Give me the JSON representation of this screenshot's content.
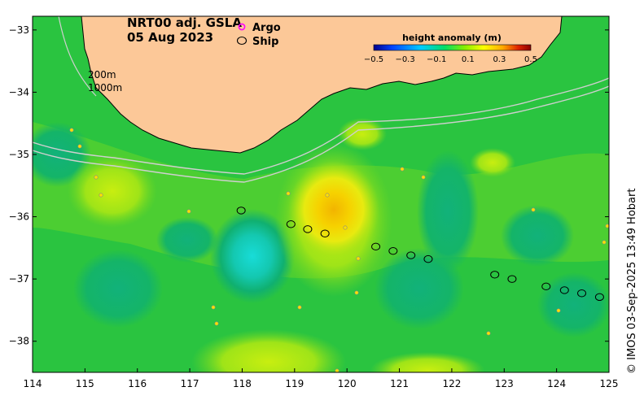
{
  "title": {
    "product": "NRT00 adj. GSLA",
    "date": "05 Aug 2023"
  },
  "legend": {
    "argo_label": "Argo",
    "ship_label": "Ship",
    "argo_color": "#ff00ff",
    "ship_color": "#000000"
  },
  "colorbar": {
    "title": "height anomaly (m)",
    "ticks": [
      "−0.5",
      "−0.3",
      "−0.1",
      "0.1",
      "0.3",
      "0.5"
    ],
    "stops": [
      "#00008b",
      "#0044ff",
      "#00ccff",
      "#00dd66",
      "#88ee00",
      "#ffff00",
      "#ffaa00",
      "#dd2200",
      "#8b0000"
    ]
  },
  "isobaths": {
    "shallow": "200m",
    "deep": "1000m"
  },
  "axes": {
    "x_ticks": [
      "114",
      "115",
      "116",
      "117",
      "118",
      "119",
      "120",
      "121",
      "122",
      "123",
      "124",
      "125"
    ],
    "y_ticks": [
      "−33",
      "−34",
      "−35",
      "−36",
      "−37",
      "−38"
    ]
  },
  "credit": "© IMOS 03-Sep-2025 13:49 Hobart",
  "colors": {
    "land": "#fcc898",
    "ocean_base": "#22c03a",
    "high_anomaly": "#f0c000",
    "low_anomaly": "#18d8d0"
  },
  "ship_tracks": [
    {
      "lon": 117.98,
      "lat": -35.9
    },
    {
      "lon": 118.93,
      "lat": -36.12
    },
    {
      "lon": 119.25,
      "lat": -36.2
    },
    {
      "lon": 119.58,
      "lat": -36.27
    },
    {
      "lon": 120.55,
      "lat": -36.48
    },
    {
      "lon": 120.88,
      "lat": -36.55
    },
    {
      "lon": 121.22,
      "lat": -36.62
    },
    {
      "lon": 121.55,
      "lat": -36.68
    },
    {
      "lon": 122.82,
      "lat": -36.93
    },
    {
      "lon": 123.15,
      "lat": -37.0
    },
    {
      "lon": 123.8,
      "lat": -37.12
    },
    {
      "lon": 124.15,
      "lat": -37.18
    },
    {
      "lon": 124.48,
      "lat": -37.23
    },
    {
      "lon": 124.82,
      "lat": -37.29
    }
  ]
}
